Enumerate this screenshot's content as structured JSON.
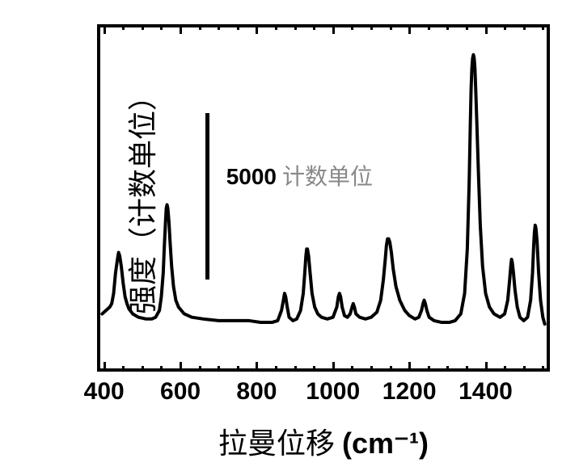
{
  "chart": {
    "type": "line",
    "xlabel_prefix": "拉曼位移 ",
    "xlabel_unit": "(cm⁻¹)",
    "ylabel": "强度（计数单位）",
    "scale_value": "5000",
    "scale_unit": " 计数单位",
    "xlim": [
      390,
      1560
    ],
    "ylim": [
      0,
      100
    ],
    "xtick_values": [
      400,
      600,
      800,
      1000,
      1200,
      1400
    ],
    "xtick_labels": [
      "400",
      "600",
      "800",
      "1000",
      "1200",
      "1400"
    ],
    "minor_xtick_step": 50,
    "line_color": "#000000",
    "line_width": 4,
    "background_color": "#ffffff",
    "border_color": "#000000",
    "border_width": 4,
    "label_fontsize": 36,
    "tick_fontsize": 30,
    "scale_fontsize": 28,
    "scale_num_color": "#000000",
    "scale_unit_color": "#888888",
    "scale_bar": {
      "x": 670,
      "y_top": 75,
      "y_bottom": 26,
      "width": 5
    },
    "scale_text_pos": {
      "x": 720,
      "y": 58
    },
    "trace_points": [
      [
        395,
        16
      ],
      [
        400,
        16.5
      ],
      [
        405,
        17
      ],
      [
        410,
        17.5
      ],
      [
        415,
        18
      ],
      [
        420,
        19
      ],
      [
        425,
        22
      ],
      [
        430,
        28
      ],
      [
        435,
        32
      ],
      [
        438,
        34
      ],
      [
        441,
        33
      ],
      [
        445,
        30
      ],
      [
        450,
        25
      ],
      [
        455,
        21
      ],
      [
        460,
        19
      ],
      [
        465,
        17.5
      ],
      [
        475,
        16
      ],
      [
        490,
        15
      ],
      [
        510,
        14.5
      ],
      [
        525,
        14.5
      ],
      [
        535,
        15
      ],
      [
        545,
        17
      ],
      [
        550,
        21
      ],
      [
        555,
        28
      ],
      [
        558,
        36
      ],
      [
        561,
        43
      ],
      [
        563,
        47
      ],
      [
        565,
        48
      ],
      [
        567,
        47
      ],
      [
        570,
        43
      ],
      [
        573,
        37
      ],
      [
        577,
        30
      ],
      [
        582,
        24
      ],
      [
        588,
        20
      ],
      [
        595,
        18
      ],
      [
        610,
        16
      ],
      [
        630,
        15
      ],
      [
        660,
        14.5
      ],
      [
        700,
        14
      ],
      [
        740,
        14
      ],
      [
        780,
        14
      ],
      [
        810,
        13.5
      ],
      [
        840,
        13.5
      ],
      [
        855,
        14
      ],
      [
        865,
        17
      ],
      [
        870,
        20
      ],
      [
        873,
        22
      ],
      [
        876,
        21
      ],
      [
        880,
        18
      ],
      [
        885,
        15
      ],
      [
        895,
        14
      ],
      [
        905,
        14.5
      ],
      [
        915,
        17
      ],
      [
        922,
        22
      ],
      [
        926,
        28
      ],
      [
        929,
        33
      ],
      [
        931,
        35
      ],
      [
        933,
        35
      ],
      [
        936,
        33
      ],
      [
        940,
        28
      ],
      [
        945,
        22
      ],
      [
        952,
        18
      ],
      [
        960,
        16
      ],
      [
        970,
        15
      ],
      [
        985,
        14.5
      ],
      [
        1000,
        15
      ],
      [
        1010,
        18
      ],
      [
        1014,
        21
      ],
      [
        1017,
        22
      ],
      [
        1020,
        21
      ],
      [
        1024,
        18
      ],
      [
        1030,
        15.5
      ],
      [
        1038,
        15
      ],
      [
        1045,
        16
      ],
      [
        1050,
        18
      ],
      [
        1053,
        19
      ],
      [
        1056,
        18
      ],
      [
        1060,
        16
      ],
      [
        1070,
        15
      ],
      [
        1085,
        14.5
      ],
      [
        1100,
        15
      ],
      [
        1115,
        16.5
      ],
      [
        1125,
        20
      ],
      [
        1132,
        26
      ],
      [
        1137,
        32
      ],
      [
        1140,
        36
      ],
      [
        1143,
        38
      ],
      [
        1146,
        38
      ],
      [
        1149,
        37
      ],
      [
        1153,
        34
      ],
      [
        1158,
        29
      ],
      [
        1165,
        24
      ],
      [
        1175,
        20
      ],
      [
        1188,
        17
      ],
      [
        1200,
        15.5
      ],
      [
        1215,
        14.5
      ],
      [
        1225,
        15
      ],
      [
        1232,
        17
      ],
      [
        1236,
        19
      ],
      [
        1239,
        20
      ],
      [
        1242,
        19
      ],
      [
        1246,
        17
      ],
      [
        1252,
        15
      ],
      [
        1265,
        14
      ],
      [
        1285,
        13.5
      ],
      [
        1305,
        13.5
      ],
      [
        1320,
        14
      ],
      [
        1335,
        16
      ],
      [
        1345,
        22
      ],
      [
        1352,
        35
      ],
      [
        1357,
        55
      ],
      [
        1360,
        72
      ],
      [
        1362,
        82
      ],
      [
        1364,
        88
      ],
      [
        1366,
        91
      ],
      [
        1368,
        92
      ],
      [
        1370,
        91
      ],
      [
        1372,
        88
      ],
      [
        1374,
        82
      ],
      [
        1377,
        72
      ],
      [
        1381,
        58
      ],
      [
        1386,
        42
      ],
      [
        1392,
        30
      ],
      [
        1400,
        22
      ],
      [
        1410,
        18
      ],
      [
        1422,
        16
      ],
      [
        1438,
        15
      ],
      [
        1450,
        16
      ],
      [
        1458,
        20
      ],
      [
        1463,
        26
      ],
      [
        1466,
        30
      ],
      [
        1468,
        32
      ],
      [
        1470,
        31
      ],
      [
        1473,
        28
      ],
      [
        1477,
        23
      ],
      [
        1483,
        18
      ],
      [
        1490,
        15
      ],
      [
        1500,
        14
      ],
      [
        1510,
        15
      ],
      [
        1518,
        20
      ],
      [
        1523,
        28
      ],
      [
        1526,
        36
      ],
      [
        1528,
        40
      ],
      [
        1530,
        42
      ],
      [
        1532,
        41
      ],
      [
        1535,
        37
      ],
      [
        1539,
        28
      ],
      [
        1544,
        20
      ],
      [
        1550,
        15
      ],
      [
        1555,
        13
      ]
    ]
  }
}
